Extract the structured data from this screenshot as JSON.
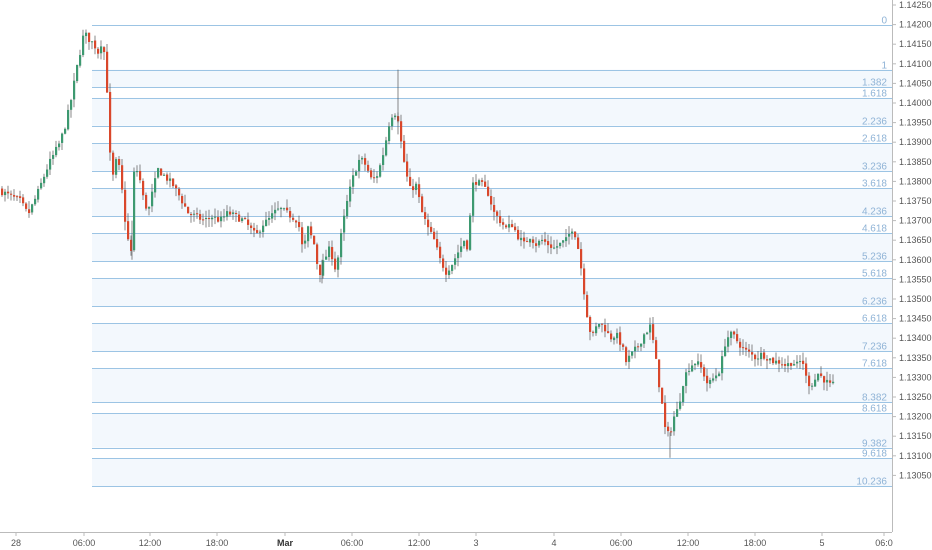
{
  "chart_data": {
    "type": "candlestick",
    "title": "",
    "xlabel": "",
    "ylabel": "",
    "ylim": [
      1.13025,
      1.1427
    ],
    "y_ticks": [
      "1.14250",
      "1.14200",
      "1.14150",
      "1.14100",
      "1.14050",
      "1.14000",
      "1.13950",
      "1.13900",
      "1.13850",
      "1.13800",
      "1.13750",
      "1.13700",
      "1.13650",
      "1.13600",
      "1.13550",
      "1.13500",
      "1.13450",
      "1.13400",
      "1.13350",
      "1.13300",
      "1.13250",
      "1.13200",
      "1.13150",
      "1.13100",
      "1.13050"
    ],
    "x_ticks": [
      {
        "label": "28",
        "bold": false
      },
      {
        "label": "06:00",
        "bold": false
      },
      {
        "label": "12:00",
        "bold": false
      },
      {
        "label": "18:00",
        "bold": false
      },
      {
        "label": "Mar",
        "bold": true
      },
      {
        "label": "06:00",
        "bold": false
      },
      {
        "label": "12:00",
        "bold": false
      },
      {
        "label": "3",
        "bold": false
      },
      {
        "label": "4",
        "bold": false
      },
      {
        "label": "06:00",
        "bold": false
      },
      {
        "label": "12:00",
        "bold": false
      },
      {
        "label": "18:00",
        "bold": false
      },
      {
        "label": "5",
        "bold": false
      },
      {
        "label": "06:0",
        "bold": false
      }
    ],
    "fib_levels": [
      {
        "label": "0",
        "price": 1.142
      },
      {
        "label": "1",
        "price": 1.14085
      },
      {
        "label": "1.382",
        "price": 1.1404
      },
      {
        "label": "1.618",
        "price": 1.14013
      },
      {
        "label": "2.236",
        "price": 1.13942
      },
      {
        "label": "2.618",
        "price": 1.13898
      },
      {
        "label": "3.236",
        "price": 1.13827
      },
      {
        "label": "3.618",
        "price": 1.13783
      },
      {
        "label": "4.236",
        "price": 1.13712
      },
      {
        "label": "4.618",
        "price": 1.13668
      },
      {
        "label": "5.236",
        "price": 1.13597
      },
      {
        "label": "5.618",
        "price": 1.13553
      },
      {
        "label": "6.236",
        "price": 1.13482
      },
      {
        "label": "6.618",
        "price": 1.13438
      },
      {
        "label": "7.236",
        "price": 1.13367
      },
      {
        "label": "7.618",
        "price": 1.13323
      },
      {
        "label": "8.382",
        "price": 1.13236
      },
      {
        "label": "8.618",
        "price": 1.13209
      },
      {
        "label": "9.382",
        "price": 1.13121
      },
      {
        "label": "9.618",
        "price": 1.13094
      },
      {
        "label": "10.236",
        "price": 1.13023
      }
    ],
    "path": [
      [
        0,
        1.1378
      ],
      [
        10,
        1.13765
      ],
      [
        22,
        1.1375
      ],
      [
        30,
        1.13715
      ],
      [
        38,
        1.1376
      ],
      [
        44,
        1.138
      ],
      [
        50,
        1.1384
      ],
      [
        56,
        1.1387
      ],
      [
        62,
        1.139
      ],
      [
        68,
        1.1395
      ],
      [
        74,
        1.1402
      ],
      [
        78,
        1.1408
      ],
      [
        82,
        1.1413
      ],
      [
        86,
        1.1418
      ],
      [
        90,
        1.14165
      ],
      [
        96,
        1.1415
      ],
      [
        100,
        1.1413
      ],
      [
        104,
        1.1416
      ],
      [
        108,
        1.141
      ],
      [
        111,
        1.139
      ],
      [
        114,
        1.138
      ],
      [
        118,
        1.1385
      ],
      [
        122,
        1.1383
      ],
      [
        126,
        1.1372
      ],
      [
        130,
        1.1365
      ],
      [
        133,
        1.1362
      ],
      [
        136,
        1.1382
      ],
      [
        140,
        1.1383
      ],
      [
        145,
        1.1376
      ],
      [
        150,
        1.1372
      ],
      [
        155,
        1.1378
      ],
      [
        160,
        1.1383
      ],
      [
        168,
        1.1381
      ],
      [
        175,
        1.1379
      ],
      [
        182,
        1.1376
      ],
      [
        190,
        1.1372
      ],
      [
        198,
        1.1371
      ],
      [
        206,
        1.137
      ],
      [
        214,
        1.1371
      ],
      [
        222,
        1.137
      ],
      [
        230,
        1.1372
      ],
      [
        238,
        1.1371
      ],
      [
        246,
        1.137
      ],
      [
        252,
        1.1368
      ],
      [
        258,
        1.1366
      ],
      [
        264,
        1.1369
      ],
      [
        270,
        1.137
      ],
      [
        276,
        1.1372
      ],
      [
        282,
        1.1373
      ],
      [
        288,
        1.1372
      ],
      [
        294,
        1.1371
      ],
      [
        300,
        1.137
      ],
      [
        305,
        1.1362
      ],
      [
        310,
        1.1368
      ],
      [
        316,
        1.1364
      ],
      [
        321,
        1.1356
      ],
      [
        326,
        1.136
      ],
      [
        332,
        1.1363
      ],
      [
        338,
        1.1357
      ],
      [
        344,
        1.1368
      ],
      [
        350,
        1.1376
      ],
      [
        356,
        1.1382
      ],
      [
        362,
        1.1386
      ],
      [
        368,
        1.1384
      ],
      [
        374,
        1.138
      ],
      [
        380,
        1.1382
      ],
      [
        386,
        1.1388
      ],
      [
        392,
        1.1396
      ],
      [
        396,
        1.1398
      ],
      [
        400,
        1.1396
      ],
      [
        404,
        1.1388
      ],
      [
        408,
        1.1382
      ],
      [
        412,
        1.1378
      ],
      [
        418,
        1.1379
      ],
      [
        424,
        1.1372
      ],
      [
        430,
        1.1368
      ],
      [
        436,
        1.1365
      ],
      [
        442,
        1.136
      ],
      [
        448,
        1.1357
      ],
      [
        454,
        1.1359
      ],
      [
        460,
        1.1362
      ],
      [
        466,
        1.1365
      ],
      [
        470,
        1.1363
      ],
      [
        474,
        1.1379
      ],
      [
        478,
        1.138
      ],
      [
        484,
        1.1379
      ],
      [
        490,
        1.1377
      ],
      [
        496,
        1.1372
      ],
      [
        502,
        1.137
      ],
      [
        508,
        1.1368
      ],
      [
        514,
        1.1369
      ],
      [
        520,
        1.1366
      ],
      [
        526,
        1.1364
      ],
      [
        532,
        1.1366
      ],
      [
        538,
        1.1364
      ],
      [
        544,
        1.1365
      ],
      [
        550,
        1.1364
      ],
      [
        556,
        1.1363
      ],
      [
        562,
        1.1364
      ],
      [
        568,
        1.1365
      ],
      [
        574,
        1.1368
      ],
      [
        578,
        1.1366
      ],
      [
        582,
        1.136
      ],
      [
        586,
        1.1352
      ],
      [
        590,
        1.1344
      ],
      [
        594,
        1.134
      ],
      [
        600,
        1.1344
      ],
      [
        606,
        1.1343
      ],
      [
        612,
        1.134
      ],
      [
        618,
        1.1341
      ],
      [
        624,
        1.1338
      ],
      [
        628,
        1.1334
      ],
      [
        634,
        1.1336
      ],
      [
        640,
        1.1338
      ],
      [
        646,
        1.1341
      ],
      [
        652,
        1.1343
      ],
      [
        656,
        1.1338
      ],
      [
        660,
        1.133
      ],
      [
        664,
        1.1323
      ],
      [
        668,
        1.1315
      ],
      [
        672,
        1.1316
      ],
      [
        676,
        1.132
      ],
      [
        680,
        1.1322
      ],
      [
        686,
        1.133
      ],
      [
        692,
        1.1333
      ],
      [
        698,
        1.1334
      ],
      [
        704,
        1.1332
      ],
      [
        710,
        1.1328
      ],
      [
        716,
        1.133
      ],
      [
        722,
        1.1332
      ],
      [
        728,
        1.134
      ],
      [
        734,
        1.1341
      ],
      [
        740,
        1.1339
      ],
      [
        746,
        1.1337
      ],
      [
        752,
        1.1336
      ],
      [
        758,
        1.1335
      ],
      [
        764,
        1.1336
      ],
      [
        770,
        1.1335
      ],
      [
        776,
        1.1334
      ],
      [
        782,
        1.1334
      ],
      [
        788,
        1.1333
      ],
      [
        794,
        1.1334
      ],
      [
        800,
        1.1333
      ],
      [
        804,
        1.1335
      ],
      [
        808,
        1.133
      ],
      [
        812,
        1.1328
      ],
      [
        816,
        1.1329
      ],
      [
        820,
        1.1331
      ],
      [
        824,
        1.133
      ],
      [
        828,
        1.1329
      ],
      [
        832,
        1.1328
      ]
    ],
    "grid": false,
    "legend": "none"
  }
}
